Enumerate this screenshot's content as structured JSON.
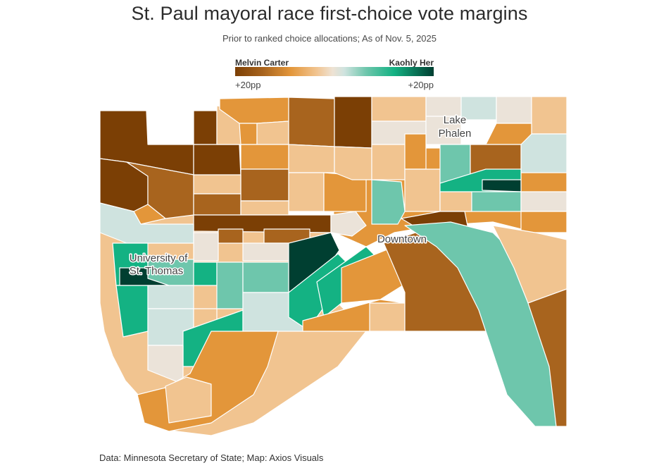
{
  "header": {
    "title": "St. Paul mayoral race first-choice vote margins",
    "subtitle": "Prior to ranked choice allocations; As of Nov. 5, 2025"
  },
  "legend": {
    "left_candidate": "Melvin Carter",
    "right_candidate": "Kaohly Her",
    "left_tick": "+20pp",
    "right_tick": "+20pp",
    "colors": {
      "carter_strong": "#7b3f05",
      "carter_medium": "#a8641e",
      "carter_light": "#e3963a",
      "carter_faint": "#f1c490",
      "neutral": "#ebe3d9",
      "her_faint": "#cfe3df",
      "her_light": "#6ec6ac",
      "her_medium": "#14b283",
      "her_strong": "#003f31"
    }
  },
  "map": {
    "labels": {
      "lake_phalen": [
        "Lake",
        "Phalen"
      ],
      "downtown": "Downtown",
      "st_thomas": [
        "University of",
        "St. Thomas"
      ]
    }
  },
  "footer": {
    "source": "Data: Minnesota Secretary of State; Map: Axios Visuals"
  }
}
